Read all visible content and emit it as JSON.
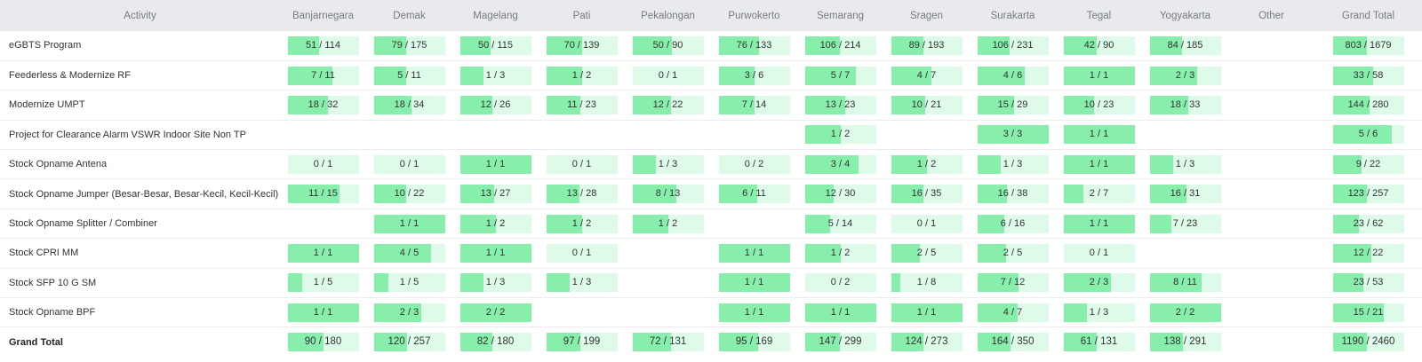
{
  "columns": [
    {
      "key": "activity",
      "label": "Activity"
    },
    {
      "key": "banjarnegara",
      "label": "Banjarnegara"
    },
    {
      "key": "demak",
      "label": "Demak"
    },
    {
      "key": "magelang",
      "label": "Magelang"
    },
    {
      "key": "pati",
      "label": "Pati"
    },
    {
      "key": "pekalongan",
      "label": "Pekalongan"
    },
    {
      "key": "purwokerto",
      "label": "Purwokerto"
    },
    {
      "key": "semarang",
      "label": "Semarang"
    },
    {
      "key": "sragen",
      "label": "Sragen"
    },
    {
      "key": "surakarta",
      "label": "Surakarta"
    },
    {
      "key": "tegal",
      "label": "Tegal"
    },
    {
      "key": "yogyakarta",
      "label": "Yogyakarta"
    },
    {
      "key": "other",
      "label": "Other"
    },
    {
      "key": "grand_total",
      "label": "Grand Total"
    }
  ],
  "rows": [
    {
      "activity": "eGBTS Program",
      "cells": [
        {
          "text": "51 / 114",
          "done": 51,
          "total": 114
        },
        {
          "text": "79 / 175",
          "done": 79,
          "total": 175
        },
        {
          "text": "50 / 115",
          "done": 50,
          "total": 115
        },
        {
          "text": "70 / 139",
          "done": 70,
          "total": 139
        },
        {
          "text": "50 / 90",
          "done": 50,
          "total": 90
        },
        {
          "text": "76 / 133",
          "done": 76,
          "total": 133
        },
        {
          "text": "106 / 214",
          "done": 106,
          "total": 214
        },
        {
          "text": "89 / 193",
          "done": 89,
          "total": 193
        },
        {
          "text": "106 / 231",
          "done": 106,
          "total": 231
        },
        {
          "text": "42 / 90",
          "done": 42,
          "total": 90
        },
        {
          "text": "84 / 185",
          "done": 84,
          "total": 185
        },
        null,
        {
          "text": "803 / 1679",
          "done": 803,
          "total": 1679
        }
      ]
    },
    {
      "activity": "Feederless & Modernize RF",
      "cells": [
        {
          "text": "7 / 11",
          "done": 7,
          "total": 11
        },
        {
          "text": "5 / 11",
          "done": 5,
          "total": 11
        },
        {
          "text": "1 / 3",
          "done": 1,
          "total": 3
        },
        {
          "text": "1 / 2",
          "done": 1,
          "total": 2
        },
        {
          "text": "0 / 1",
          "done": 0,
          "total": 1
        },
        {
          "text": "3 / 6",
          "done": 3,
          "total": 6
        },
        {
          "text": "5 / 7",
          "done": 5,
          "total": 7
        },
        {
          "text": "4 / 7",
          "done": 4,
          "total": 7
        },
        {
          "text": "4 / 6",
          "done": 4,
          "total": 6
        },
        {
          "text": "1 / 1",
          "done": 1,
          "total": 1
        },
        {
          "text": "2 / 3",
          "done": 2,
          "total": 3
        },
        null,
        {
          "text": "33 / 58",
          "done": 33,
          "total": 58
        }
      ]
    },
    {
      "activity": "Modernize UMPT",
      "cells": [
        {
          "text": "18 / 32",
          "done": 18,
          "total": 32
        },
        {
          "text": "18 / 34",
          "done": 18,
          "total": 34
        },
        {
          "text": "12 / 26",
          "done": 12,
          "total": 26
        },
        {
          "text": "11 / 23",
          "done": 11,
          "total": 23
        },
        {
          "text": "12 / 22",
          "done": 12,
          "total": 22
        },
        {
          "text": "7 / 14",
          "done": 7,
          "total": 14
        },
        {
          "text": "13 / 23",
          "done": 13,
          "total": 23
        },
        {
          "text": "10 / 21",
          "done": 10,
          "total": 21
        },
        {
          "text": "15 / 29",
          "done": 15,
          "total": 29
        },
        {
          "text": "10 / 23",
          "done": 10,
          "total": 23
        },
        {
          "text": "18 / 33",
          "done": 18,
          "total": 33
        },
        null,
        {
          "text": "144 / 280",
          "done": 144,
          "total": 280
        }
      ]
    },
    {
      "activity": "Project for Clearance Alarm VSWR Indoor Site Non TP",
      "cells": [
        null,
        null,
        null,
        null,
        null,
        null,
        {
          "text": "1 / 2",
          "done": 1,
          "total": 2
        },
        null,
        {
          "text": "3 / 3",
          "done": 3,
          "total": 3
        },
        {
          "text": "1 / 1",
          "done": 1,
          "total": 1
        },
        null,
        null,
        {
          "text": "5 / 6",
          "done": 5,
          "total": 6
        }
      ]
    },
    {
      "activity": "Stock Opname Antena",
      "cells": [
        {
          "text": "0 / 1",
          "done": 0,
          "total": 1
        },
        {
          "text": "0 / 1",
          "done": 0,
          "total": 1
        },
        {
          "text": "1 / 1",
          "done": 1,
          "total": 1
        },
        {
          "text": "0 / 1",
          "done": 0,
          "total": 1
        },
        {
          "text": "1 / 3",
          "done": 1,
          "total": 3
        },
        {
          "text": "0 / 2",
          "done": 0,
          "total": 2
        },
        {
          "text": "3 / 4",
          "done": 3,
          "total": 4
        },
        {
          "text": "1 / 2",
          "done": 1,
          "total": 2
        },
        {
          "text": "1 / 3",
          "done": 1,
          "total": 3
        },
        {
          "text": "1 / 1",
          "done": 1,
          "total": 1
        },
        {
          "text": "1 / 3",
          "done": 1,
          "total": 3
        },
        null,
        {
          "text": "9 / 22",
          "done": 9,
          "total": 22
        }
      ]
    },
    {
      "activity": "Stock Opname Jumper (Besar-Besar, Besar-Kecil, Kecil-Kecil)",
      "cells": [
        {
          "text": "11 / 15",
          "done": 11,
          "total": 15
        },
        {
          "text": "10 / 22",
          "done": 10,
          "total": 22
        },
        {
          "text": "13 / 27",
          "done": 13,
          "total": 27
        },
        {
          "text": "13 / 28",
          "done": 13,
          "total": 28
        },
        {
          "text": "8 / 13",
          "done": 8,
          "total": 13
        },
        {
          "text": "6 / 11",
          "done": 6,
          "total": 11
        },
        {
          "text": "12 / 30",
          "done": 12,
          "total": 30
        },
        {
          "text": "16 / 35",
          "done": 16,
          "total": 35
        },
        {
          "text": "16 / 38",
          "done": 16,
          "total": 38
        },
        {
          "text": "2 / 7",
          "done": 2,
          "total": 7
        },
        {
          "text": "16 / 31",
          "done": 16,
          "total": 31
        },
        null,
        {
          "text": "123 / 257",
          "done": 123,
          "total": 257
        }
      ]
    },
    {
      "activity": "Stock Opname Splitter / Combiner",
      "cells": [
        null,
        {
          "text": "1 / 1",
          "done": 1,
          "total": 1
        },
        {
          "text": "1 / 2",
          "done": 1,
          "total": 2
        },
        {
          "text": "1 / 2",
          "done": 1,
          "total": 2
        },
        {
          "text": "1 / 2",
          "done": 1,
          "total": 2
        },
        null,
        {
          "text": "5 / 14",
          "done": 5,
          "total": 14
        },
        {
          "text": "0 / 1",
          "done": 0,
          "total": 1
        },
        {
          "text": "6 / 16",
          "done": 6,
          "total": 16
        },
        {
          "text": "1 / 1",
          "done": 1,
          "total": 1
        },
        {
          "text": "7 / 23",
          "done": 7,
          "total": 23
        },
        null,
        {
          "text": "23 / 62",
          "done": 23,
          "total": 62
        }
      ]
    },
    {
      "activity": "Stock CPRI MM",
      "cells": [
        {
          "text": "1 / 1",
          "done": 1,
          "total": 1
        },
        {
          "text": "4 / 5",
          "done": 4,
          "total": 5
        },
        {
          "text": "1 / 1",
          "done": 1,
          "total": 1
        },
        {
          "text": "0 / 1",
          "done": 0,
          "total": 1
        },
        null,
        {
          "text": "1 / 1",
          "done": 1,
          "total": 1
        },
        {
          "text": "1 / 2",
          "done": 1,
          "total": 2
        },
        {
          "text": "2 / 5",
          "done": 2,
          "total": 5
        },
        {
          "text": "2 / 5",
          "done": 2,
          "total": 5
        },
        {
          "text": "0 / 1",
          "done": 0,
          "total": 1
        },
        null,
        null,
        {
          "text": "12 / 22",
          "done": 12,
          "total": 22
        }
      ]
    },
    {
      "activity": "Stock SFP 10 G SM",
      "cells": [
        {
          "text": "1 / 5",
          "done": 1,
          "total": 5
        },
        {
          "text": "1 / 5",
          "done": 1,
          "total": 5
        },
        {
          "text": "1 / 3",
          "done": 1,
          "total": 3
        },
        {
          "text": "1 / 3",
          "done": 1,
          "total": 3
        },
        null,
        {
          "text": "1 / 1",
          "done": 1,
          "total": 1
        },
        {
          "text": "0 / 2",
          "done": 0,
          "total": 2
        },
        {
          "text": "1 / 8",
          "done": 1,
          "total": 8
        },
        {
          "text": "7 / 12",
          "done": 7,
          "total": 12
        },
        {
          "text": "2 / 3",
          "done": 2,
          "total": 3
        },
        {
          "text": "8 / 11",
          "done": 8,
          "total": 11
        },
        null,
        {
          "text": "23 / 53",
          "done": 23,
          "total": 53
        }
      ]
    },
    {
      "activity": "Stock Opname BPF",
      "cells": [
        {
          "text": "1 / 1",
          "done": 1,
          "total": 1
        },
        {
          "text": "2 / 3",
          "done": 2,
          "total": 3
        },
        {
          "text": "2 / 2",
          "done": 2,
          "total": 2
        },
        null,
        null,
        {
          "text": "1 / 1",
          "done": 1,
          "total": 1
        },
        {
          "text": "1 / 1",
          "done": 1,
          "total": 1
        },
        {
          "text": "1 / 1",
          "done": 1,
          "total": 1
        },
        {
          "text": "4 / 7",
          "done": 4,
          "total": 7
        },
        {
          "text": "1 / 3",
          "done": 1,
          "total": 3
        },
        {
          "text": "2 / 2",
          "done": 2,
          "total": 2
        },
        null,
        {
          "text": "15 / 21",
          "done": 15,
          "total": 21
        }
      ]
    }
  ],
  "grand_total_row": {
    "activity": "Grand Total",
    "cells": [
      {
        "text": "90 / 180",
        "done": 90,
        "total": 180
      },
      {
        "text": "120 / 257",
        "done": 120,
        "total": 257
      },
      {
        "text": "82 / 180",
        "done": 82,
        "total": 180
      },
      {
        "text": "97 / 199",
        "done": 97,
        "total": 199
      },
      {
        "text": "72 / 131",
        "done": 72,
        "total": 131
      },
      {
        "text": "95 / 169",
        "done": 95,
        "total": 169
      },
      {
        "text": "147 / 299",
        "done": 147,
        "total": 299
      },
      {
        "text": "124 / 273",
        "done": 124,
        "total": 273
      },
      {
        "text": "164 / 350",
        "done": 164,
        "total": 350
      },
      {
        "text": "61 / 131",
        "done": 61,
        "total": 131
      },
      {
        "text": "138 / 291",
        "done": 138,
        "total": 291
      },
      null,
      {
        "text": "1190 / 2460",
        "done": 1190,
        "total": 2460
      }
    ]
  },
  "colors": {
    "header_bg": "#e9eaee",
    "header_text": "#777b82",
    "bar_bg": "#ddfbe8",
    "bar_fill": "#87eeab",
    "row_border": "#ececee"
  }
}
